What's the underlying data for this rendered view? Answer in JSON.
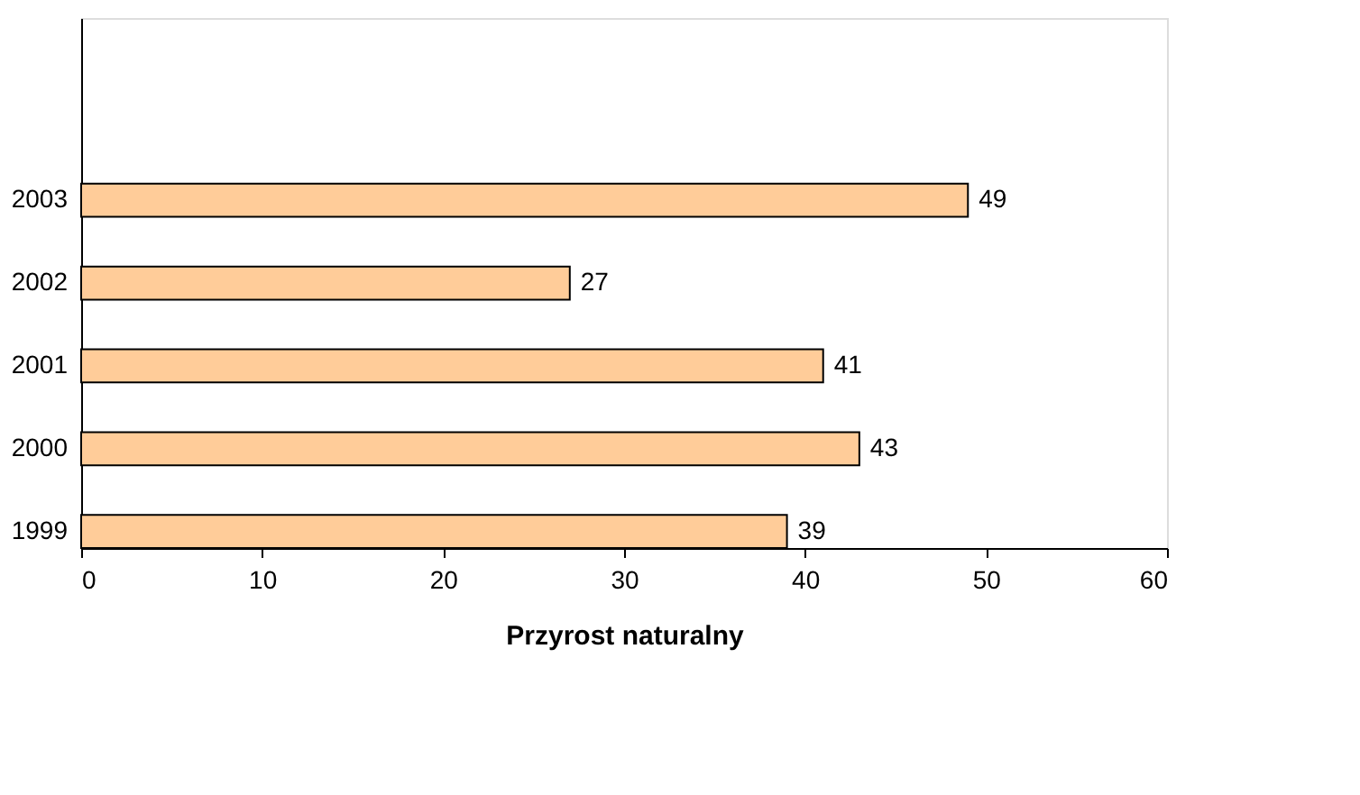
{
  "chart_data": {
    "type": "bar",
    "orientation": "horizontal",
    "xlabel": "Przyrost naturalny",
    "categories": [
      "2003",
      "2002",
      "2001",
      "2000",
      "1999"
    ],
    "values": [
      49,
      27,
      41,
      43,
      39
    ],
    "color": "#ffcc99",
    "xlim": [
      0,
      60
    ],
    "xticks": [
      0,
      10,
      20,
      30,
      40,
      50,
      60
    ],
    "grid": false,
    "data_labels": true
  }
}
